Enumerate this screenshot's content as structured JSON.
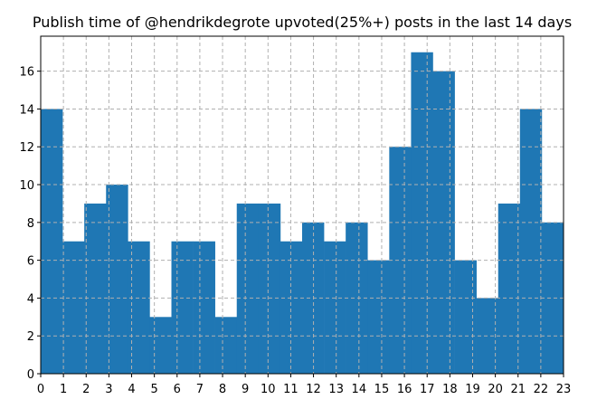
{
  "chart_data": {
    "type": "histogram",
    "title": "Publish time of @hendrikdegrote upvoted(25%+) posts in the last 14 days",
    "bins": [
      0,
      0.9583,
      1.9167,
      2.875,
      3.8333,
      4.7917,
      5.75,
      6.7083,
      7.6667,
      8.625,
      9.5833,
      10.5417,
      11.5,
      12.4583,
      13.4167,
      14.375,
      15.3333,
      16.2917,
      17.25,
      18.2083,
      19.1667,
      20.125,
      21.0833,
      22.0417,
      23
    ],
    "values": [
      14,
      7,
      9,
      10,
      7,
      3,
      7,
      7,
      3,
      9,
      9,
      7,
      8,
      7,
      8,
      6,
      12,
      17,
      16,
      6,
      4,
      9,
      14,
      8
    ],
    "color": "#1f77b4",
    "xlim": [
      0,
      23
    ],
    "xticks": [
      0,
      1,
      2,
      3,
      4,
      5,
      6,
      7,
      8,
      9,
      10,
      11,
      12,
      13,
      14,
      15,
      16,
      17,
      18,
      19,
      20,
      21,
      22,
      23
    ],
    "ylim": [
      0,
      17.85
    ],
    "yticks": [
      0,
      2,
      4,
      6,
      8,
      10,
      12,
      14,
      16
    ],
    "grid": true
  }
}
